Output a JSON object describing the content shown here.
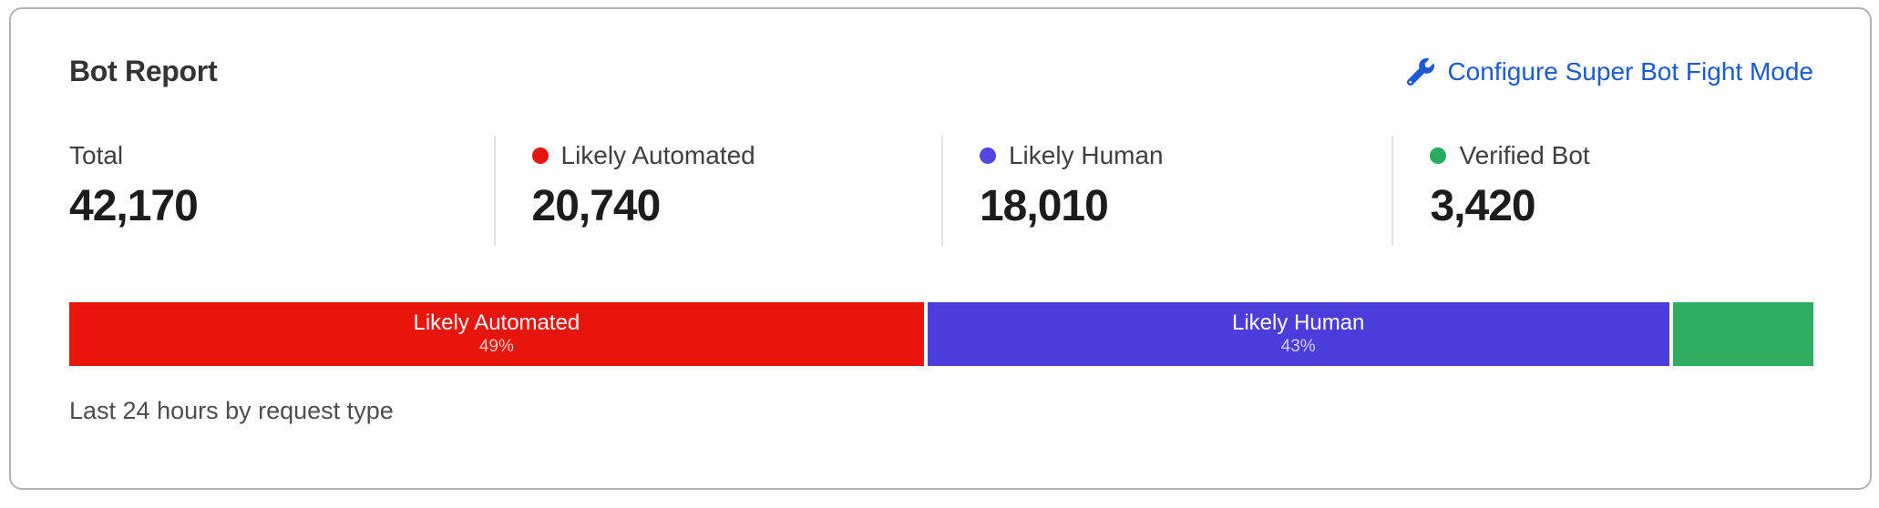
{
  "card": {
    "title": "Bot Report",
    "configure_link": {
      "label": "Configure Super Bot Fight Mode",
      "icon": "wrench-icon",
      "color": "#1b59d6"
    },
    "caption": "Last 24 hours by request type",
    "border_color": "#b3b3b3"
  },
  "stats": [
    {
      "label": "Total",
      "value": "42,170",
      "dot_color": null
    },
    {
      "label": "Likely Automated",
      "value": "20,740",
      "dot_color": "#e8150c"
    },
    {
      "label": "Likely Human",
      "value": "18,010",
      "dot_color": "#5447de"
    },
    {
      "label": "Verified Bot",
      "value": "3,420",
      "dot_color": "#27ab60"
    }
  ],
  "chart_data": {
    "type": "bar",
    "variant": "horizontal-stacked-percentage",
    "title": "Bot Report",
    "caption": "Last 24 hours by request type",
    "total": 42170,
    "legend_position": "stats-row-above-bar",
    "segments": [
      {
        "name": "Likely Automated",
        "value": 20740,
        "percent_label": "49%",
        "share_percent": 49.2,
        "color": "#e8150c",
        "show_label": true
      },
      {
        "name": "Likely Human",
        "value": 18010,
        "percent_label": "43%",
        "share_percent": 42.7,
        "color": "#4a3ddb",
        "show_label": true
      },
      {
        "name": "Verified Bot",
        "value": 3420,
        "percent_label": "",
        "share_percent": 8.1,
        "color": "#2fae61",
        "show_label": false
      }
    ]
  }
}
